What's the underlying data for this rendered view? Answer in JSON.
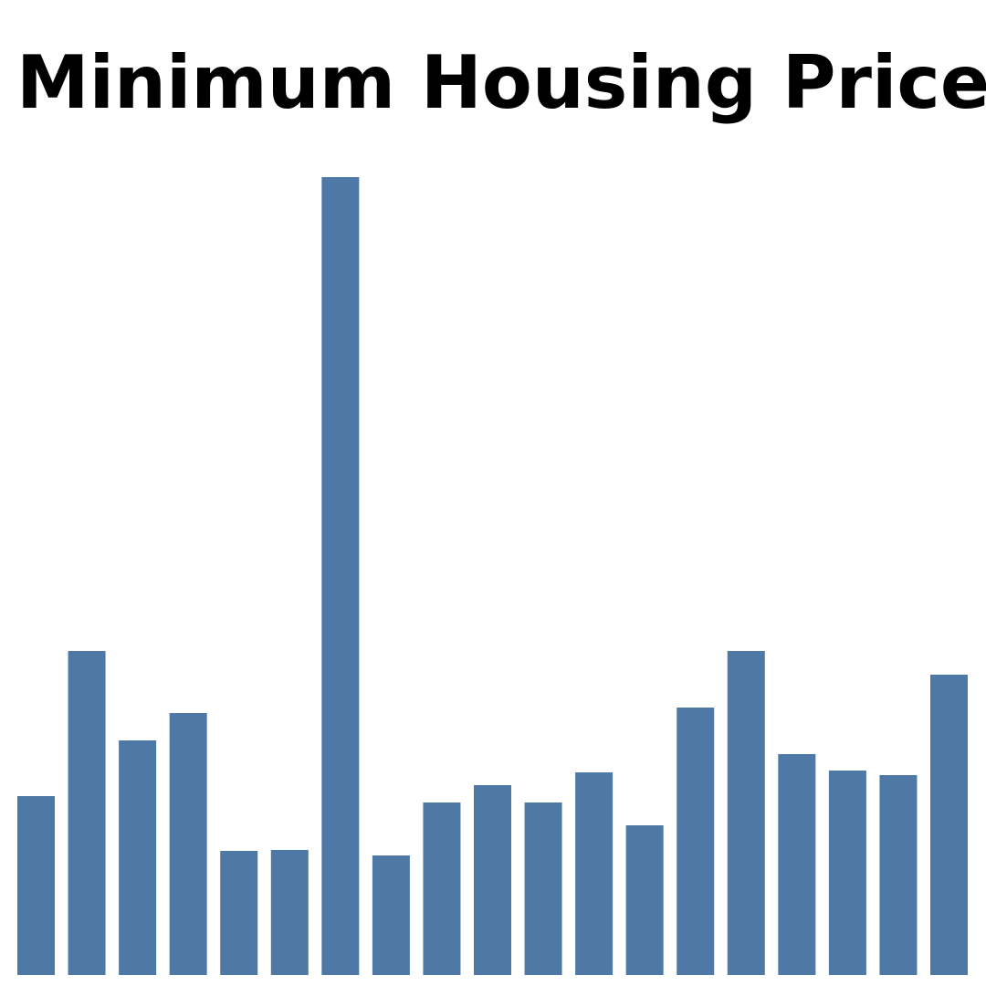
{
  "chart_data": {
    "type": "bar",
    "title": "Minimum Housing Price",
    "categories": [
      null,
      null,
      null,
      null,
      null,
      null,
      null,
      null,
      null,
      null,
      null,
      null,
      null,
      null,
      null,
      null,
      null,
      null,
      null
    ],
    "values": [
      196,
      355,
      257,
      287,
      136,
      137,
      874,
      131,
      189,
      208,
      189,
      222,
      164,
      293,
      355,
      242,
      224,
      219,
      329
    ],
    "color": "#4e79a7",
    "ylim": [
      0,
      874
    ]
  }
}
